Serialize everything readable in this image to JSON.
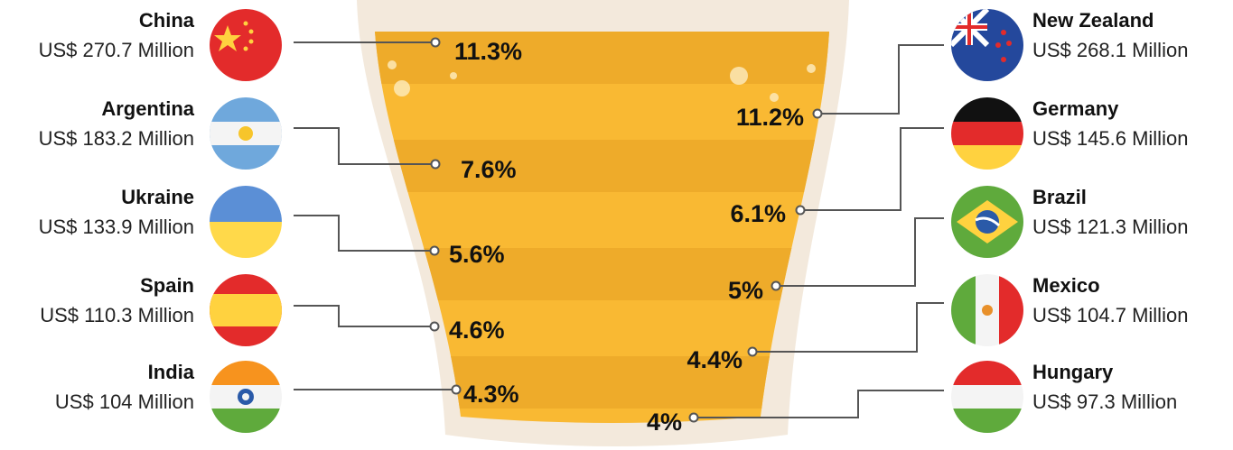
{
  "left": [
    {
      "name": "China",
      "amount": "US$ 270.7 Million",
      "share": "11.3%"
    },
    {
      "name": "Argentina",
      "amount": "US$ 183.2 Million",
      "share": "7.6%"
    },
    {
      "name": "Ukraine",
      "amount": "US$ 133.9 Million",
      "share": "5.6%"
    },
    {
      "name": "Spain",
      "amount": "US$ 110.3 Million",
      "share": "4.6%"
    },
    {
      "name": "India",
      "amount": "US$ 104 Million",
      "share": "4.3%"
    }
  ],
  "right": [
    {
      "name": "New Zealand",
      "amount": "US$ 268.1 Million",
      "share": "11.2%"
    },
    {
      "name": "Germany",
      "amount": "US$ 145.6 Million",
      "share": "6.1%"
    },
    {
      "name": "Brazil",
      "amount": "US$ 121.3 Million",
      "share": "5%"
    },
    {
      "name": "Mexico",
      "amount": "US$ 104.7 Million",
      "share": "4.4%"
    },
    {
      "name": "Hungary",
      "amount": "US$ 97.3 Million",
      "share": "4%"
    }
  ]
}
